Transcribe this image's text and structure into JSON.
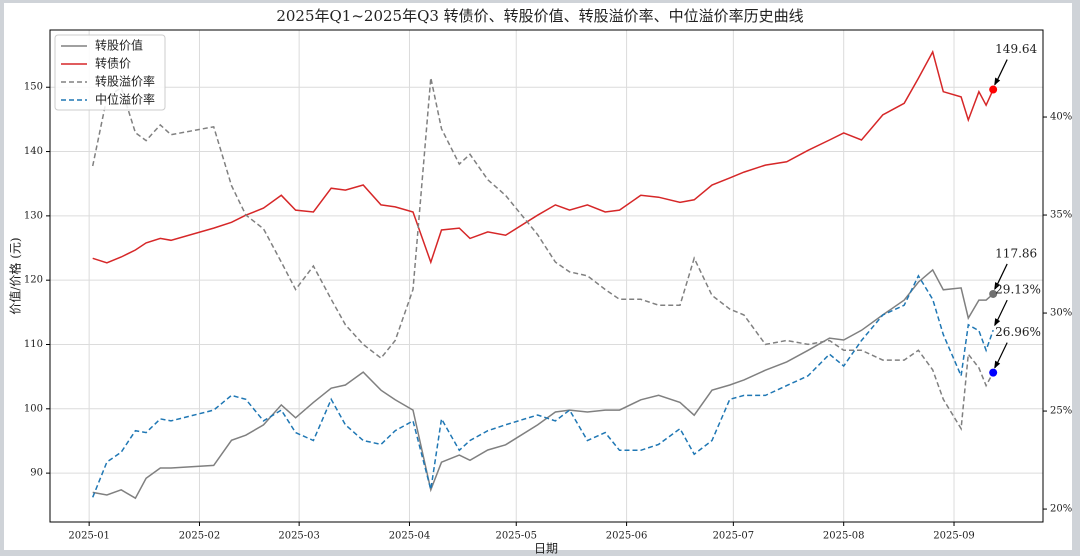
{
  "chart_data": {
    "type": "line",
    "title": "2025年Q1~2025年Q3 转债价、转股价值、转股溢价率、中位溢价率历史曲线",
    "xlabel": "日期",
    "ylabel": "价值/价格 (元)",
    "x": [
      "2025-01-02",
      "2025-01-06",
      "2025-01-10",
      "2025-01-14",
      "2025-01-17",
      "2025-01-21",
      "2025-01-24",
      "2025-02-05",
      "2025-02-10",
      "2025-02-14",
      "2025-02-19",
      "2025-02-24",
      "2025-02-28",
      "2025-03-05",
      "2025-03-10",
      "2025-03-14",
      "2025-03-19",
      "2025-03-24",
      "2025-03-28",
      "2025-04-02",
      "2025-04-07",
      "2025-04-10",
      "2025-04-15",
      "2025-04-18",
      "2025-04-23",
      "2025-04-28",
      "2025-05-07",
      "2025-05-12",
      "2025-05-16",
      "2025-05-21",
      "2025-05-26",
      "2025-05-30",
      "2025-06-05",
      "2025-06-10",
      "2025-06-16",
      "2025-06-20",
      "2025-06-25",
      "2025-06-30",
      "2025-07-04",
      "2025-07-10",
      "2025-07-16",
      "2025-07-22",
      "2025-07-28",
      "2025-08-01",
      "2025-08-06",
      "2025-08-12",
      "2025-08-18",
      "2025-08-22",
      "2025-08-26",
      "2025-08-29",
      "2025-09-03",
      "2025-09-05",
      "2025-09-08",
      "2025-09-10",
      "2025-09-12"
    ],
    "series": [
      {
        "name": "转股价值",
        "color": "#808080",
        "dash": false,
        "axis": "y",
        "marker_color": "#707070",
        "annotation": "117.86",
        "values": [
          87.0,
          86.6,
          87.4,
          86.1,
          89.2,
          90.8,
          90.8,
          91.2,
          95.1,
          95.9,
          97.5,
          100.6,
          98.6,
          101.0,
          103.2,
          103.7,
          105.7,
          102.9,
          101.4,
          99.8,
          87.4,
          91.7,
          92.8,
          92.0,
          93.6,
          94.4,
          97.5,
          99.5,
          99.8,
          99.5,
          99.8,
          99.8,
          101.4,
          102.1,
          101.0,
          99.0,
          102.9,
          103.7,
          104.5,
          106.0,
          107.3,
          109.1,
          111.0,
          110.7,
          112.2,
          114.6,
          116.9,
          119.7,
          121.6,
          118.5,
          118.8,
          114.1,
          116.9,
          116.9,
          117.86
        ]
      },
      {
        "name": "转债价",
        "color": "#d62728",
        "dash": false,
        "axis": "y",
        "marker_color": "#ff0000",
        "annotation": "149.64",
        "values": [
          123.4,
          122.7,
          123.6,
          124.7,
          125.8,
          126.5,
          126.2,
          128.1,
          129.0,
          130.1,
          131.2,
          133.2,
          130.9,
          130.6,
          134.3,
          134.0,
          134.8,
          131.7,
          131.4,
          130.6,
          122.8,
          127.8,
          128.1,
          126.5,
          127.5,
          127.0,
          130.1,
          131.7,
          130.9,
          131.7,
          130.6,
          130.9,
          133.2,
          132.9,
          132.1,
          132.5,
          134.8,
          135.9,
          136.8,
          137.9,
          138.4,
          140.2,
          141.8,
          142.9,
          141.8,
          145.7,
          147.5,
          151.4,
          155.5,
          149.3,
          148.5,
          144.9,
          149.3,
          147.2,
          149.64
        ]
      },
      {
        "name": "转股溢价率",
        "color": "#808080",
        "dash": true,
        "axis": "y2",
        "marker_color": "#0000ff",
        "annotation": "26.96%",
        "values": [
          37.5,
          41.0,
          41.5,
          39.2,
          38.8,
          39.6,
          39.1,
          39.5,
          36.5,
          35.0,
          34.3,
          32.6,
          31.2,
          32.4,
          30.7,
          29.4,
          28.4,
          27.7,
          28.6,
          31.2,
          42.0,
          39.4,
          37.6,
          38.1,
          36.8,
          36.0,
          34.0,
          32.6,
          32.1,
          31.9,
          31.2,
          30.7,
          30.7,
          30.4,
          30.4,
          32.8,
          30.9,
          30.2,
          29.9,
          28.4,
          28.6,
          28.4,
          28.6,
          28.1,
          28.1,
          27.6,
          27.6,
          28.1,
          27.1,
          25.6,
          24.1,
          27.9,
          27.2,
          26.3,
          26.96
        ]
      },
      {
        "name": "中位溢价率",
        "color": "#1f77b4",
        "dash": true,
        "axis": "y2",
        "annotation": "29.13%",
        "values": [
          20.6,
          22.4,
          22.9,
          24.0,
          23.9,
          24.6,
          24.5,
          25.05,
          25.8,
          25.6,
          24.5,
          25.05,
          23.9,
          23.5,
          25.6,
          24.3,
          23.5,
          23.3,
          24.0,
          24.5,
          21.0,
          24.6,
          23.0,
          23.5,
          24.0,
          24.3,
          24.8,
          24.5,
          25.05,
          23.5,
          23.9,
          23.0,
          23.0,
          23.3,
          24.1,
          22.8,
          23.5,
          25.6,
          25.8,
          25.8,
          26.3,
          26.8,
          27.9,
          27.3,
          28.6,
          29.9,
          30.4,
          31.9,
          30.7,
          28.9,
          26.8,
          29.4,
          29.1,
          28.1,
          29.13
        ]
      }
    ],
    "xlim": [
      "2024-12-21",
      "2025-09-26"
    ],
    "xticks": [
      {
        "value": "2025-01-01",
        "label": "2025-01"
      },
      {
        "value": "2025-02-01",
        "label": "2025-02"
      },
      {
        "value": "2025-03-01",
        "label": "2025-03"
      },
      {
        "value": "2025-04-01",
        "label": "2025-04"
      },
      {
        "value": "2025-05-01",
        "label": "2025-05"
      },
      {
        "value": "2025-06-01",
        "label": "2025-06"
      },
      {
        "value": "2025-07-01",
        "label": "2025-07"
      },
      {
        "value": "2025-08-01",
        "label": "2025-08"
      },
      {
        "value": "2025-09-01",
        "label": "2025-09"
      }
    ],
    "ylim": [
      82.4,
      158.9
    ],
    "yticks": [
      90,
      100,
      110,
      120,
      130,
      140,
      150
    ],
    "y2lim": [
      19.34,
      44.44
    ],
    "y2ticks": [
      {
        "value": 20,
        "label": "20%"
      },
      {
        "value": 25,
        "label": "25%"
      },
      {
        "value": 30,
        "label": "30%"
      },
      {
        "value": 35,
        "label": "35%"
      },
      {
        "value": 40,
        "label": "40%"
      }
    ],
    "grid": true,
    "legend": "upper left"
  }
}
